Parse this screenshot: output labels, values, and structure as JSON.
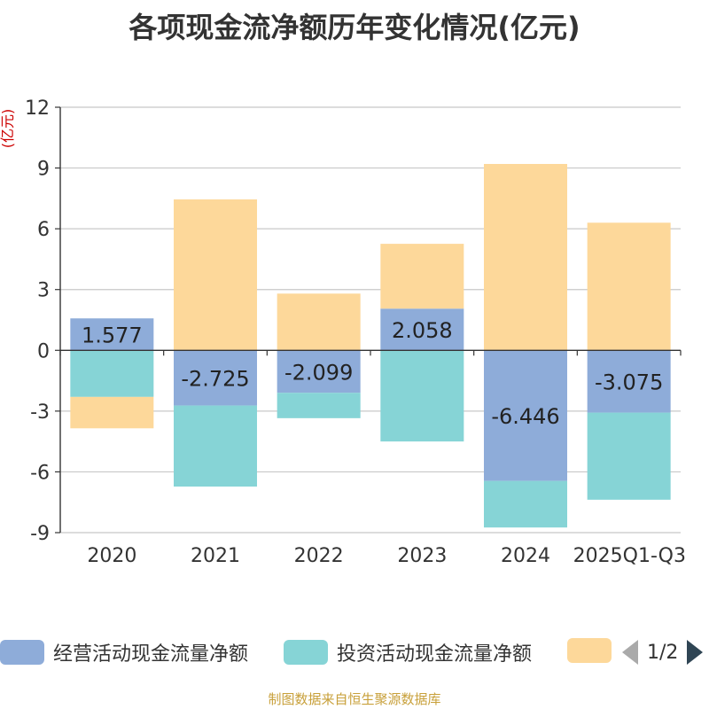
{
  "chart_data": {
    "type": "bar",
    "stacked": true,
    "title": "各项现金流净额历年变化情况(亿元)",
    "ylabel": "(亿元)",
    "categories": [
      "2020",
      "2021",
      "2022",
      "2023",
      "2024",
      "2025Q1-Q3"
    ],
    "ylim": [
      -9,
      12
    ],
    "yticks": [
      12,
      9,
      6,
      3,
      0,
      -3,
      -6,
      -9
    ],
    "series": [
      {
        "name": "经营活动现金流量净额",
        "color": "#8eacd9",
        "values": [
          1.577,
          -2.725,
          -2.099,
          2.058,
          -6.446,
          -3.075
        ],
        "labels": [
          "1.577",
          "-2.725",
          "-2.099",
          "2.058",
          "-6.446",
          "-3.075"
        ]
      },
      {
        "name": "投资活动现金流量净额",
        "color": "#86d4d6",
        "values": [
          -2.3,
          -4.0,
          -1.25,
          -4.5,
          -2.3,
          -4.3
        ]
      },
      {
        "name": "",
        "color": "#fdd89a",
        "values": [
          -1.55,
          7.45,
          2.8,
          3.2,
          9.2,
          6.3
        ]
      }
    ]
  },
  "legend": {
    "items": [
      {
        "label": "经营活动现金流量净额",
        "color": "#8eacd9"
      },
      {
        "label": "投资活动现金流量净额",
        "color": "#86d4d6"
      },
      {
        "label": "",
        "color": "#fdd89a"
      }
    ],
    "page": "1/2"
  },
  "source": "制图数据来自恒生聚源数据库"
}
